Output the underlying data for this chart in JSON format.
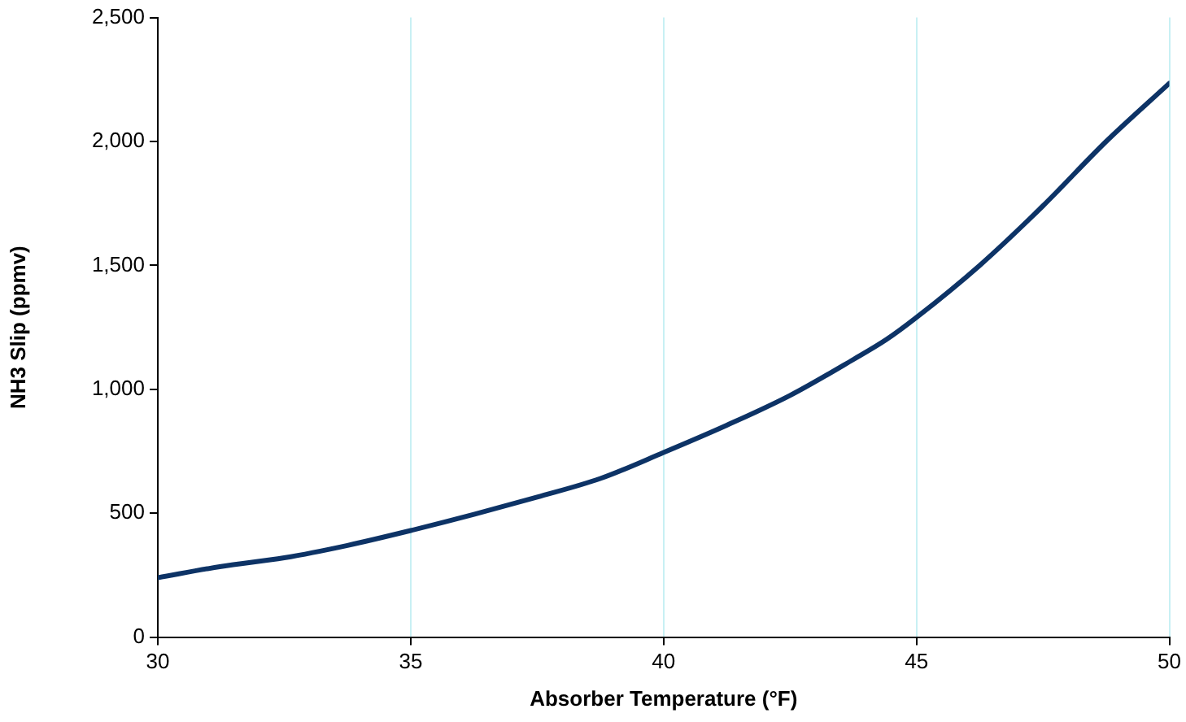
{
  "chart_data": {
    "type": "line",
    "xlabel": "Absorber Temperature (°F)",
    "ylabel": "NH3 Slip (ppmv)",
    "x": [
      30,
      31.25,
      32.5,
      33.75,
      35,
      36.25,
      37.5,
      38.75,
      40,
      41.25,
      42.5,
      43.75,
      44.4,
      45,
      46.25,
      47.5,
      48.75,
      50
    ],
    "series": [
      {
        "color": "#0d3366",
        "values": [
          240,
          285,
          320,
          370,
          430,
          495,
          565,
          640,
          745,
          855,
          975,
          1120,
          1200,
          1290,
          1500,
          1740,
          2000,
          2235
        ]
      }
    ],
    "xlim": [
      30,
      50
    ],
    "xticks": [
      30,
      35,
      40,
      45,
      50
    ],
    "ylim": [
      0,
      2500
    ],
    "yticks": [
      0,
      500,
      {
        "value": 1000,
        "label": "1,000"
      },
      {
        "value": 1500,
        "label": "1,500"
      },
      {
        "value": 2000,
        "label": "2,000"
      },
      {
        "value": 2500,
        "label": "2,500"
      }
    ],
    "grid": "x",
    "legend": false,
    "marker": "none",
    "line_style": "solid"
  }
}
